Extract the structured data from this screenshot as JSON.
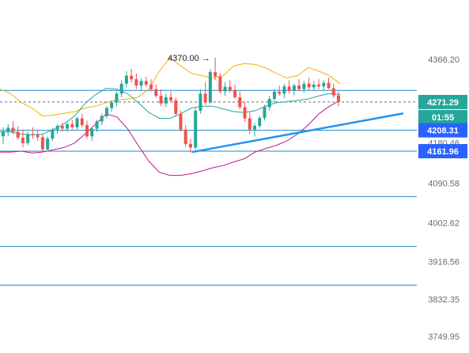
{
  "chart_data": {
    "type": "candlestick",
    "title": "",
    "ylim": [
      3749.95,
      4366.2
    ],
    "y_ticks": [
      4366.2,
      4271.29,
      4208.31,
      4180.46,
      4161.96,
      4090.58,
      4002.62,
      3916.56,
      3832.35,
      3749.95
    ],
    "y_tick_labels": [
      "4366.20",
      "4180.46",
      "4090.58",
      "4002.62",
      "3916.56",
      "3832.35",
      "3749.95"
    ],
    "horizontal_levels": [
      4297.0,
      4208.31,
      4161.96,
      4061.0,
      3950.0,
      3864.0
    ],
    "current_price": {
      "label": "4271.29",
      "value": 4271.29,
      "countdown": "01:55",
      "color": "#26a69a"
    },
    "level_tags": [
      {
        "label": "4208.31",
        "value": 4208.31,
        "color": "#2962ff"
      },
      {
        "label": "4161.96",
        "value": 4161.96,
        "color": "#2962ff"
      }
    ],
    "annotation": {
      "label": "4370.00 →",
      "value": 4370.0
    },
    "trendline": {
      "from": [
        54,
        4158
      ],
      "to": [
        121,
        4248
      ]
    },
    "colors": {
      "up": "#26a69a",
      "down": "#ef5350",
      "upper_band": "#f5b000",
      "lower_band": "#c2188a",
      "mid_band": "#26a69a",
      "levels": "#1e88c8",
      "trendline": "#2196f3",
      "dashed_current": "#5c6b8a"
    },
    "candles": [
      [
        4195,
        4215,
        4178,
        4206
      ],
      [
        4206,
        4222,
        4195,
        4214
      ],
      [
        4214,
        4228,
        4200,
        4205
      ],
      [
        4205,
        4218,
        4188,
        4192
      ],
      [
        4192,
        4210,
        4170,
        4180
      ],
      [
        4180,
        4205,
        4175,
        4200
      ],
      [
        4200,
        4215,
        4190,
        4198
      ],
      [
        4198,
        4210,
        4185,
        4193
      ],
      [
        4193,
        4200,
        4160,
        4166
      ],
      [
        4166,
        4195,
        4162,
        4190
      ],
      [
        4190,
        4214,
        4185,
        4210
      ],
      [
        4210,
        4222,
        4200,
        4218
      ],
      [
        4218,
        4226,
        4205,
        4212
      ],
      [
        4212,
        4225,
        4205,
        4222
      ],
      [
        4222,
        4232,
        4210,
        4215
      ],
      [
        4215,
        4238,
        4210,
        4235
      ],
      [
        4235,
        4245,
        4215,
        4220
      ],
      [
        4220,
        4230,
        4190,
        4195
      ],
      [
        4195,
        4215,
        4185,
        4212
      ],
      [
        4212,
        4232,
        4205,
        4228
      ],
      [
        4228,
        4246,
        4220,
        4240
      ],
      [
        4240,
        4262,
        4235,
        4258
      ],
      [
        4258,
        4275,
        4250,
        4270
      ],
      [
        4270,
        4295,
        4262,
        4290
      ],
      [
        4290,
        4320,
        4282,
        4312
      ],
      [
        4312,
        4340,
        4305,
        4330
      ],
      [
        4330,
        4345,
        4315,
        4322
      ],
      [
        4322,
        4335,
        4300,
        4308
      ],
      [
        4308,
        4325,
        4298,
        4318
      ],
      [
        4318,
        4328,
        4305,
        4310
      ],
      [
        4310,
        4322,
        4295,
        4300
      ],
      [
        4300,
        4310,
        4280,
        4285
      ],
      [
        4285,
        4300,
        4262,
        4268
      ],
      [
        4268,
        4290,
        4260,
        4282
      ],
      [
        4282,
        4295,
        4270,
        4275
      ],
      [
        4275,
        4282,
        4240,
        4245
      ],
      [
        4245,
        4252,
        4205,
        4210
      ],
      [
        4210,
        4220,
        4172,
        4178
      ],
      [
        4178,
        4190,
        4158,
        4170
      ],
      [
        4170,
        4258,
        4165,
        4252
      ],
      [
        4252,
        4300,
        4245,
        4290
      ],
      [
        4290,
        4315,
        4265,
        4270
      ],
      [
        4270,
        4345,
        4268,
        4338
      ],
      [
        4338,
        4370,
        4320,
        4328
      ],
      [
        4328,
        4335,
        4290,
        4295
      ],
      [
        4295,
        4315,
        4285,
        4305
      ],
      [
        4305,
        4320,
        4292,
        4298
      ],
      [
        4298,
        4310,
        4278,
        4282
      ],
      [
        4282,
        4295,
        4255,
        4260
      ],
      [
        4260,
        4272,
        4228,
        4235
      ],
      [
        4235,
        4248,
        4200,
        4210
      ],
      [
        4210,
        4225,
        4195,
        4218
      ],
      [
        4218,
        4240,
        4212,
        4236
      ],
      [
        4236,
        4265,
        4230,
        4260
      ],
      [
        4260,
        4285,
        4252,
        4278
      ],
      [
        4278,
        4300,
        4270,
        4294
      ],
      [
        4294,
        4308,
        4285,
        4290
      ],
      [
        4290,
        4312,
        4280,
        4306
      ],
      [
        4306,
        4320,
        4290,
        4296
      ],
      [
        4296,
        4312,
        4286,
        4308
      ],
      [
        4308,
        4322,
        4295,
        4300
      ],
      [
        4300,
        4318,
        4292,
        4312
      ],
      [
        4312,
        4325,
        4298,
        4304
      ],
      [
        4304,
        4318,
        4296,
        4310
      ],
      [
        4310,
        4322,
        4300,
        4306
      ],
      [
        4306,
        4320,
        4298,
        4314
      ],
      [
        4314,
        4326,
        4300,
        4302
      ],
      [
        4302,
        4312,
        4280,
        4286
      ],
      [
        4286,
        4295,
        4262,
        4271
      ]
    ],
    "upper_band": [
      4300,
      4290,
      4270,
      4258,
      4240,
      4242,
      4246,
      4250,
      4258,
      4262,
      4270,
      4276,
      4278,
      4282,
      4300,
      4340,
      4370,
      4352,
      4335,
      4330,
      4325,
      4330,
      4352,
      4357,
      4355,
      4347,
      4335,
      4325,
      4330,
      4348,
      4340,
      4330,
      4312
    ],
    "mid_band": [
      4205,
      4205,
      4200,
      4198,
      4200,
      4210,
      4222,
      4240,
      4268,
      4288,
      4302,
      4300,
      4290,
      4270,
      4248,
      4235,
      4235,
      4245,
      4258,
      4262,
      4262,
      4256,
      4250,
      4248,
      4252,
      4262,
      4270,
      4272,
      4275,
      4278,
      4285,
      4290,
      4288
    ],
    "lower_band": [
      4160,
      4160,
      4162,
      4158,
      4160,
      4165,
      4170,
      4180,
      4200,
      4222,
      4245,
      4238,
      4212,
      4175,
      4140,
      4115,
      4108,
      4108,
      4112,
      4118,
      4125,
      4130,
      4138,
      4145,
      4160,
      4168,
      4175,
      4185,
      4200,
      4220,
      4245,
      4262,
      4275
    ]
  }
}
